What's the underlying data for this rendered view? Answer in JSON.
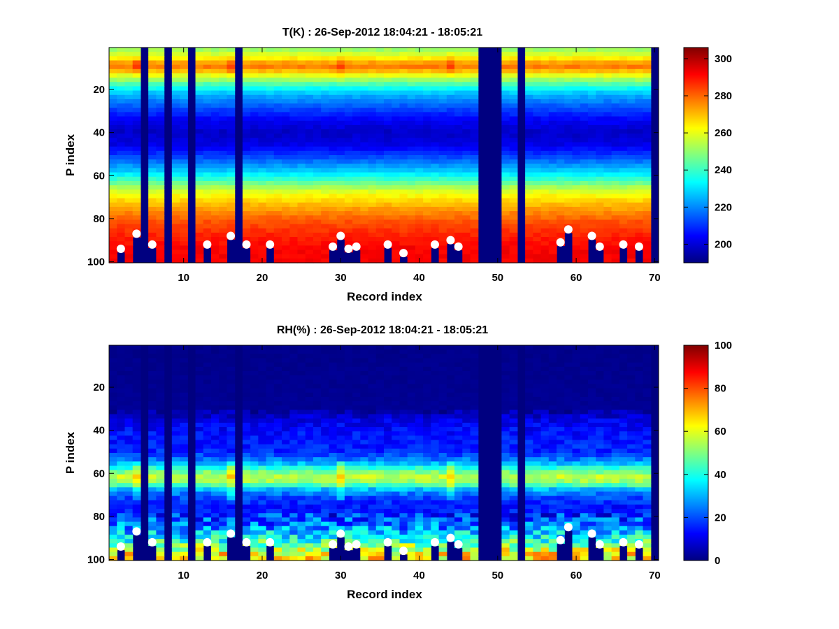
{
  "chart_data": [
    {
      "type": "heatmap",
      "title": "T(K) : 26-Sep-2012 18:04:21 - 18:05:21",
      "xlabel": "Record index",
      "ylabel": "P index",
      "xlim": [
        0.5,
        70.5
      ],
      "ylim": [
        0.5,
        100.5
      ],
      "y_reversed": true,
      "xticks": [
        10,
        20,
        30,
        40,
        50,
        60,
        70
      ],
      "yticks": [
        20,
        40,
        60,
        80,
        100
      ],
      "colorbar": {
        "min": 190,
        "max": 306,
        "ticks": [
          200,
          220,
          240,
          260,
          280,
          300
        ]
      },
      "profile": [
        {
          "p": 1,
          "v": 250
        },
        {
          "p": 5,
          "v": 262
        },
        {
          "p": 8,
          "v": 275
        },
        {
          "p": 10,
          "v": 278
        },
        {
          "p": 13,
          "v": 262
        },
        {
          "p": 18,
          "v": 240
        },
        {
          "p": 22,
          "v": 226
        },
        {
          "p": 28,
          "v": 214
        },
        {
          "p": 34,
          "v": 204
        },
        {
          "p": 40,
          "v": 198
        },
        {
          "p": 46,
          "v": 202
        },
        {
          "p": 52,
          "v": 214
        },
        {
          "p": 58,
          "v": 228
        },
        {
          "p": 63,
          "v": 244
        },
        {
          "p": 67,
          "v": 258
        },
        {
          "p": 72,
          "v": 268
        },
        {
          "p": 77,
          "v": 276
        },
        {
          "p": 82,
          "v": 283
        },
        {
          "p": 88,
          "v": 288
        },
        {
          "p": 94,
          "v": 292
        },
        {
          "p": 100,
          "v": 292
        }
      ],
      "missing_records": [
        5,
        8,
        11,
        17,
        48,
        49,
        50,
        53,
        70
      ],
      "bright_records": [
        4,
        16,
        30,
        44
      ],
      "surface_points": [
        {
          "x": 2,
          "y": 94
        },
        {
          "x": 4,
          "y": 87
        },
        {
          "x": 6,
          "y": 92
        },
        {
          "x": 13,
          "y": 92
        },
        {
          "x": 16,
          "y": 88
        },
        {
          "x": 18,
          "y": 92
        },
        {
          "x": 21,
          "y": 92
        },
        {
          "x": 29,
          "y": 93
        },
        {
          "x": 30,
          "y": 88
        },
        {
          "x": 31,
          "y": 94
        },
        {
          "x": 32,
          "y": 93
        },
        {
          "x": 36,
          "y": 92
        },
        {
          "x": 38,
          "y": 96
        },
        {
          "x": 42,
          "y": 92
        },
        {
          "x": 44,
          "y": 90
        },
        {
          "x": 45,
          "y": 93
        },
        {
          "x": 58,
          "y": 91
        },
        {
          "x": 59,
          "y": 85
        },
        {
          "x": 62,
          "y": 88
        },
        {
          "x": 63,
          "y": 93
        },
        {
          "x": 66,
          "y": 92
        },
        {
          "x": 68,
          "y": 93
        }
      ]
    },
    {
      "type": "heatmap",
      "title": "RH(%) : 26-Sep-2012 18:04:21 - 18:05:21",
      "xlabel": "Record index",
      "ylabel": "P index",
      "xlim": [
        0.5,
        70.5
      ],
      "ylim": [
        0.5,
        100.5
      ],
      "y_reversed": true,
      "xticks": [
        10,
        20,
        30,
        40,
        50,
        60,
        70
      ],
      "yticks": [
        20,
        40,
        60,
        80,
        100
      ],
      "colorbar": {
        "min": 0,
        "max": 100,
        "ticks": [
          0,
          20,
          40,
          60,
          80,
          100
        ]
      },
      "profile": [
        {
          "p": 1,
          "v": 1
        },
        {
          "p": 30,
          "v": 2
        },
        {
          "p": 35,
          "v": 10
        },
        {
          "p": 42,
          "v": 14
        },
        {
          "p": 50,
          "v": 16
        },
        {
          "p": 55,
          "v": 28
        },
        {
          "p": 59,
          "v": 48
        },
        {
          "p": 62,
          "v": 58
        },
        {
          "p": 65,
          "v": 48
        },
        {
          "p": 68,
          "v": 28
        },
        {
          "p": 72,
          "v": 18
        },
        {
          "p": 76,
          "v": 14
        },
        {
          "p": 80,
          "v": 18
        },
        {
          "p": 85,
          "v": 26
        },
        {
          "p": 90,
          "v": 38
        },
        {
          "p": 94,
          "v": 52
        },
        {
          "p": 98,
          "v": 65
        },
        {
          "p": 100,
          "v": 65
        }
      ],
      "missing_records": [
        5,
        8,
        11,
        17,
        48,
        49,
        50,
        53,
        70
      ],
      "bright_records": [
        4,
        16,
        30,
        44
      ],
      "surface_points": [
        {
          "x": 2,
          "y": 94
        },
        {
          "x": 4,
          "y": 87
        },
        {
          "x": 6,
          "y": 92
        },
        {
          "x": 13,
          "y": 92
        },
        {
          "x": 16,
          "y": 88
        },
        {
          "x": 18,
          "y": 92
        },
        {
          "x": 21,
          "y": 92
        },
        {
          "x": 29,
          "y": 93
        },
        {
          "x": 30,
          "y": 88
        },
        {
          "x": 31,
          "y": 94
        },
        {
          "x": 32,
          "y": 93
        },
        {
          "x": 36,
          "y": 92
        },
        {
          "x": 38,
          "y": 96
        },
        {
          "x": 42,
          "y": 92
        },
        {
          "x": 44,
          "y": 90
        },
        {
          "x": 45,
          "y": 93
        },
        {
          "x": 58,
          "y": 91
        },
        {
          "x": 59,
          "y": 85
        },
        {
          "x": 62,
          "y": 88
        },
        {
          "x": 63,
          "y": 93
        },
        {
          "x": 66,
          "y": 92
        },
        {
          "x": 68,
          "y": 93
        }
      ]
    }
  ]
}
